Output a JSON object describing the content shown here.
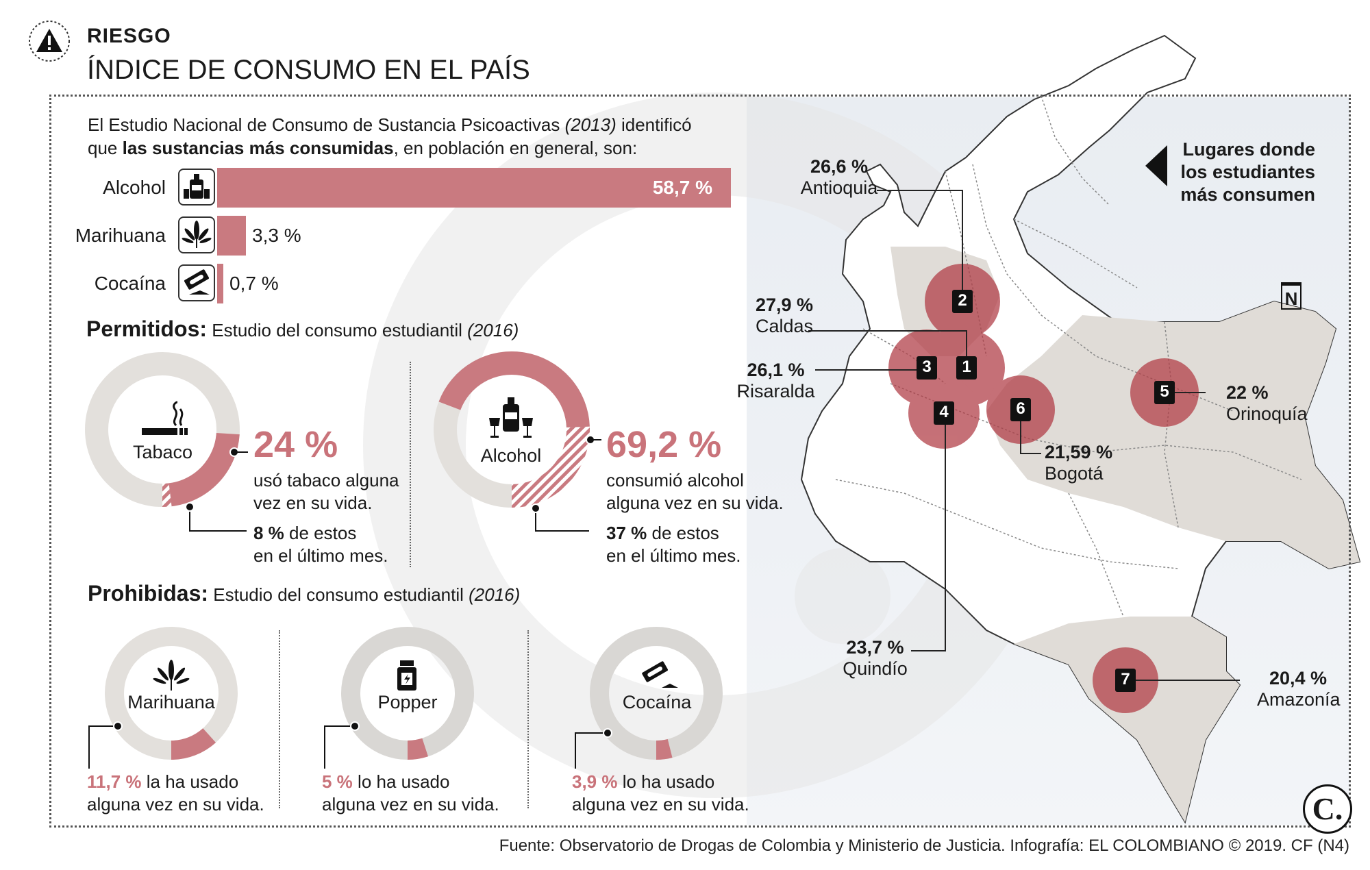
{
  "header": {
    "kicker": "RIESGO",
    "title": "ÍNDICE DE CONSUMO EN EL PAÍS"
  },
  "intro": {
    "line1_a": "El Estudio Nacional de Consumo de Sustancia Psicoactivas ",
    "line1_year": "(2013)",
    "line1_b": " identificó",
    "line2_a": "que ",
    "line2_bold": "las sustancias más consumidas",
    "line2_b": ", en población en general, son:"
  },
  "general_bars": {
    "type": "bar",
    "items": [
      {
        "label": "Alcohol",
        "value": 58.7,
        "value_label": "58,7 %",
        "icon": "liquor-bottle-icon"
      },
      {
        "label": "Marihuana",
        "value": 3.3,
        "value_label": "3,3 %",
        "icon": "cannabis-leaf-icon"
      },
      {
        "label": "Cocaína",
        "value": 0.7,
        "value_label": "0,7 %",
        "icon": "razor-blade-icon"
      }
    ],
    "bar_color": "#c9787d"
  },
  "permitidos": {
    "heading": "Permitidos:",
    "subtitle": "Estudio del consumo estudiantil ",
    "year": "(2016)",
    "items": [
      {
        "name": "Tabaco",
        "pct_label": "24 %",
        "value": 24,
        "recent": 8,
        "desc1": "usó tabaco alguna",
        "desc2": "vez en su vida.",
        "recent_bold": "8 %",
        "recent_text": " de estos",
        "recent_line2": "en el último mes.",
        "icon": "cigarette-icon"
      },
      {
        "name": "Alcohol",
        "pct_label": "69,2 %",
        "value": 69.2,
        "recent": 37,
        "desc1": "consumió alcohol",
        "desc2": "alguna vez en su vida.",
        "recent_bold": "37 %",
        "recent_text": " de estos",
        "recent_line2": "en el último mes.",
        "icon": "liquor-bottles-icon"
      }
    ]
  },
  "prohibidas": {
    "heading": "Prohibidas:",
    "subtitle": "Estudio del consumo estudiantil ",
    "year": "(2016)",
    "items": [
      {
        "name": "Marihuana",
        "pct_label": "11,7 %",
        "value": 11.7,
        "text1": " la ha usado",
        "text2": "alguna vez en su vida.",
        "icon": "cannabis-leaf-icon"
      },
      {
        "name": "Popper",
        "pct_label": "5 %",
        "value": 5,
        "text1": " lo ha usado",
        "text2": "alguna vez en su vida.",
        "icon": "popper-bottle-icon"
      },
      {
        "name": "Cocaína",
        "pct_label": "3,9 %",
        "value": 3.9,
        "text1": " lo ha usado",
        "text2": "alguna vez en su vida.",
        "icon": "razor-blade-icon"
      }
    ]
  },
  "map": {
    "legend_line1": "Lugares donde",
    "legend_line2": "los estudiantes",
    "legend_line3": "más consumen",
    "north_label": "N",
    "regions": [
      {
        "num": "1",
        "name": "Caldas",
        "pct": "27,9 %",
        "value": 27.9
      },
      {
        "num": "2",
        "name": "Antioquia",
        "pct": "26,6 %",
        "value": 26.6
      },
      {
        "num": "3",
        "name": "Risaralda",
        "pct": "26,1 %",
        "value": 26.1
      },
      {
        "num": "4",
        "name": "Quindío",
        "pct": "23,7 %",
        "value": 23.7
      },
      {
        "num": "5",
        "name": "Orinoquía",
        "pct": "22 %",
        "value": 22
      },
      {
        "num": "6",
        "name": "Bogotá",
        "pct": "21,59 %",
        "value": 21.59
      },
      {
        "num": "7",
        "name": "Amazonía",
        "pct": "20,4 %",
        "value": 20.4
      }
    ]
  },
  "brand": {
    "logo_text": "C."
  },
  "footer": {
    "source": "Fuente: Observatorio de Drogas de Colombia y Ministerio de Justicia. Infografía: EL COLOMBIANO © 2019. CF (N4)"
  },
  "chart_data": [
    {
      "type": "bar",
      "categories": [
        "Alcohol",
        "Marihuana",
        "Cocaína"
      ],
      "values": [
        58.7,
        3.3,
        0.7
      ],
      "title": "",
      "xlabel": "",
      "ylabel": ""
    },
    {
      "type": "pie",
      "categories": [
        "Tabaco",
        "Alcohol"
      ],
      "values": [
        24,
        69.2
      ],
      "recent_month_share": [
        8,
        37
      ],
      "title": "Permitidos"
    },
    {
      "type": "pie",
      "categories": [
        "Marihuana",
        "Popper",
        "Cocaína"
      ],
      "values": [
        11.7,
        5,
        3.9
      ],
      "title": "Prohibidas"
    },
    {
      "type": "table",
      "categories": [
        "Caldas",
        "Antioquia",
        "Risaralda",
        "Quindío",
        "Orinoquía",
        "Bogotá",
        "Amazonía"
      ],
      "values": [
        27.9,
        26.6,
        26.1,
        23.7,
        22,
        21.59,
        20.4
      ],
      "title": "Lugares donde los estudiantes más consumen"
    }
  ]
}
